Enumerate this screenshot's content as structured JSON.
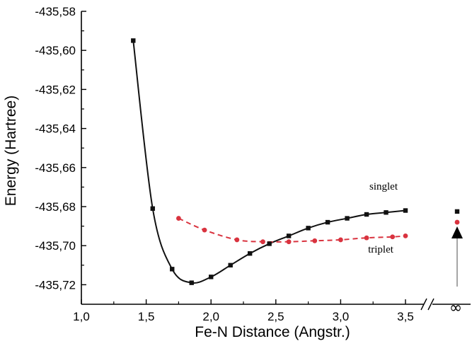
{
  "chart_data": {
    "type": "line",
    "xlabel": "Fe-N Distance (Angstr.)",
    "ylabel": "Energy (Hartree)",
    "xlim": [
      1.0,
      3.5
    ],
    "ylim": [
      -435.73,
      -435.58
    ],
    "x_ticks": [
      "1,0",
      "1,5",
      "2,0",
      "2,5",
      "3,0",
      "3,5"
    ],
    "x_tick_values": [
      1.0,
      1.5,
      2.0,
      2.5,
      3.0,
      3.5
    ],
    "y_ticks": [
      "-435,58",
      "-435,60",
      "-435,62",
      "-435,64",
      "-435,66",
      "-435,68",
      "-435,70",
      "-435,72"
    ],
    "y_tick_values": [
      -435.58,
      -435.6,
      -435.62,
      -435.64,
      -435.66,
      -435.68,
      -435.7,
      -435.72
    ],
    "x_break_label": "∞",
    "grid": false,
    "series": [
      {
        "name": "singlet",
        "color": "#111111",
        "marker": "square",
        "line_style": "solid",
        "x": [
          1.4,
          1.55,
          1.7,
          1.85,
          2.0,
          2.15,
          2.3,
          2.45,
          2.6,
          2.75,
          2.9,
          3.05,
          3.2,
          3.35,
          3.5
        ],
        "y": [
          -435.595,
          -435.681,
          -435.712,
          -435.719,
          -435.716,
          -435.71,
          -435.704,
          -435.699,
          -435.695,
          -435.691,
          -435.688,
          -435.686,
          -435.684,
          -435.683,
          -435.682
        ],
        "asymptote_y": -435.6825
      },
      {
        "name": "triplet",
        "color": "#d9333f",
        "marker": "circle",
        "line_style": "dashed",
        "x": [
          1.75,
          1.95,
          2.2,
          2.4,
          2.6,
          2.8,
          3.0,
          3.2,
          3.4,
          3.5
        ],
        "y": [
          -435.686,
          -435.692,
          -435.697,
          -435.698,
          -435.698,
          -435.6975,
          -435.697,
          -435.696,
          -435.6955,
          -435.695
        ],
        "asymptote_y": -435.688
      }
    ]
  }
}
